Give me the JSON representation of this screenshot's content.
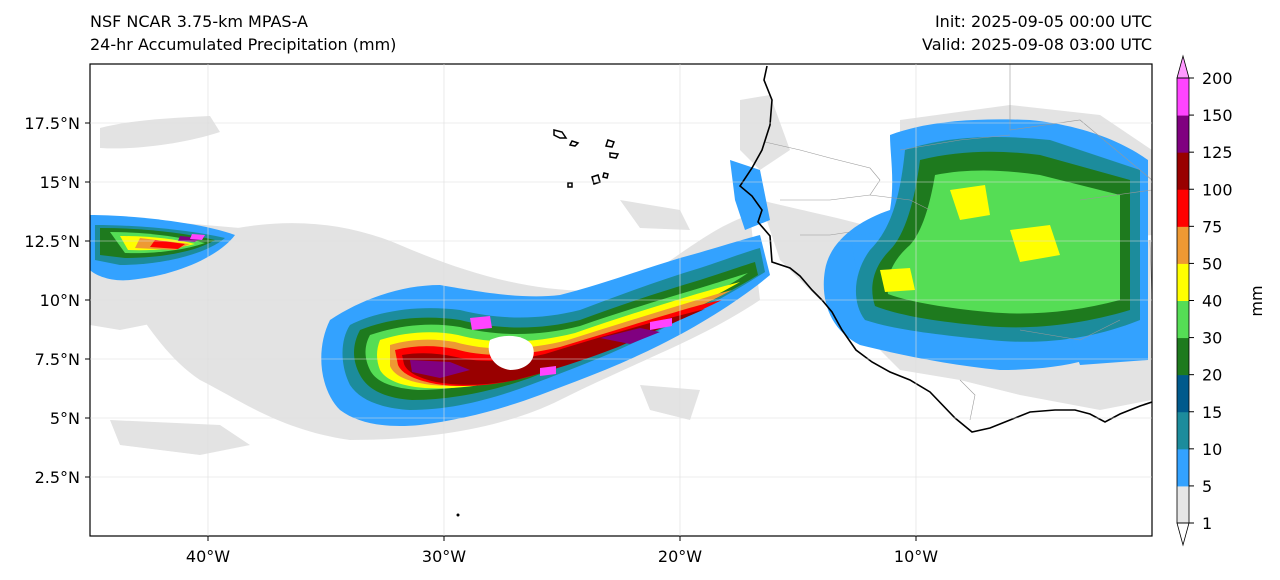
{
  "header": {
    "model": "NSF NCAR 3.75-km MPAS-A",
    "field": "24-hr Accumulated Precipitation (mm)",
    "init": "Init: 2025-09-05 00:00 UTC",
    "valid": "Valid: 2025-09-08 03:00 UTC"
  },
  "map": {
    "lon_range": [
      -45,
      0
    ],
    "lat_range": [
      0,
      20
    ],
    "lat_ticks": [
      {
        "value": 17.5,
        "label": "17.5°N"
      },
      {
        "value": 15,
        "label": "15°N"
      },
      {
        "value": 12.5,
        "label": "12.5°N"
      },
      {
        "value": 10,
        "label": "10°N"
      },
      {
        "value": 7.5,
        "label": "7.5°N"
      },
      {
        "value": 5,
        "label": "5°N"
      },
      {
        "value": 2.5,
        "label": "2.5°N"
      }
    ],
    "lon_ticks": [
      {
        "value": -40,
        "label": "40°W"
      },
      {
        "value": -30,
        "label": "30°W"
      },
      {
        "value": -20,
        "label": "20°W"
      },
      {
        "value": -10,
        "label": "10°W"
      }
    ],
    "features": [
      "Cape Verde islands",
      "West Africa coastline",
      "Tropical precipitation band"
    ]
  },
  "colorbar": {
    "label": "mm",
    "levels": [
      "1",
      "5",
      "10",
      "15",
      "20",
      "30",
      "40",
      "50",
      "75",
      "100",
      "125",
      "150",
      "200"
    ],
    "colors": [
      "#e6e6e6",
      "#33a2ff",
      "#1c8c9c",
      "#005a8c",
      "#1e7a1e",
      "#55dd55",
      "#ffff00",
      "#ee9933",
      "#ff0000",
      "#990000",
      "#800080",
      "#ff44ff"
    ],
    "extend_max_color": "#ff99ff",
    "extend_min_color": "#ffffff"
  }
}
